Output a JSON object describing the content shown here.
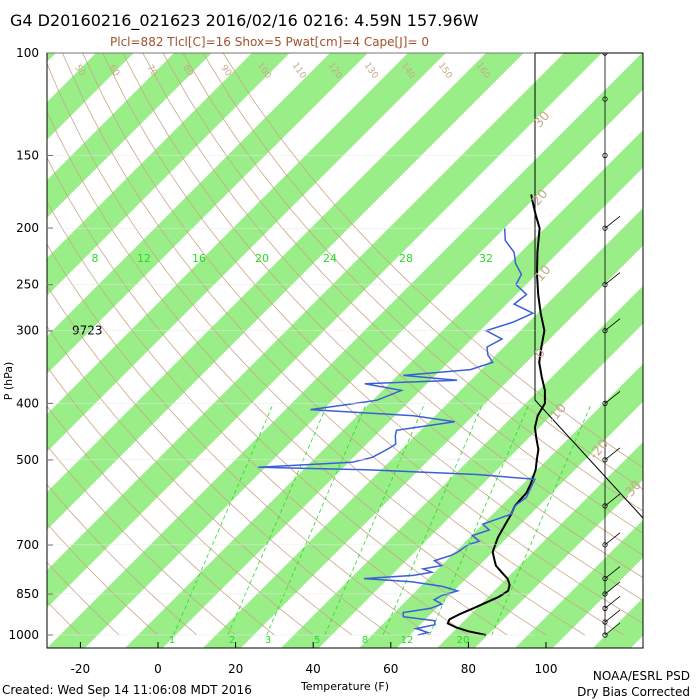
{
  "header": {
    "title": "G4 D20160216_021623 2016/02/16 0216:  4.59N 157.96W",
    "subtitle": "Plcl=882 Tlcl[C]=16 Shox=5 Pwat[cm]=4 Cape[J]= 0"
  },
  "footer": {
    "created": "Created: Wed Sep 14 11:06:08 MDT 2016",
    "credit_line1": "NOAA/ESRL PSD",
    "credit_line2": "Dry Bias Corrected"
  },
  "chart_data": {
    "type": "line",
    "title": "G4 D20160216_021623 2016/02/16 0216:  4.59N 157.96W",
    "xlabel": "Temperature (F)",
    "ylabel": "P (hPa)",
    "x_scale": "linear, skewed",
    "y_scale": "log",
    "xlim": [
      -29,
      105
    ],
    "ylim": [
      1000,
      100
    ],
    "x_ticks": [
      -20,
      0,
      20,
      40,
      60,
      80,
      100
    ],
    "y_ticks": [
      100,
      150,
      200,
      250,
      300,
      400,
      500,
      700,
      850,
      1000
    ],
    "height_annotation": {
      "pressure": 300,
      "text": "9723"
    },
    "mixing_ratio_labels_upper": [
      "8",
      "12",
      "16",
      "20",
      "24",
      "28",
      "32"
    ],
    "mixing_ratio_labels_lower": [
      "1",
      "2",
      "3",
      "5",
      "8",
      "12",
      "20"
    ],
    "theta_labels": [
      "50",
      "60",
      "70",
      "80",
      "90",
      "100",
      "110",
      "120",
      "130",
      "140",
      "150",
      "160"
    ],
    "dry_adiabat_labels": [
      "30",
      "20",
      "10",
      "0",
      "-10",
      "-20",
      "-30"
    ],
    "colors": {
      "temperature": "#000000",
      "dewpoint": "#3a5fd8",
      "band": "#99ee88",
      "mixing_ratio": "#22dd22",
      "adiabat": "#c8a888"
    },
    "series": [
      {
        "name": "Temperature",
        "points": [
          [
            1000,
            84.5
          ],
          [
            985,
            79
          ],
          [
            970,
            75
          ],
          [
            955,
            72
          ],
          [
            940,
            71.5
          ],
          [
            920,
            73
          ],
          [
            900,
            75
          ],
          [
            880,
            77
          ],
          [
            860,
            79
          ],
          [
            840,
            80
          ],
          [
            820,
            79
          ],
          [
            800,
            77
          ],
          [
            780,
            74
          ],
          [
            760,
            71
          ],
          [
            740,
            69
          ],
          [
            720,
            67
          ],
          [
            700,
            66
          ],
          [
            680,
            65
          ],
          [
            650,
            64
          ],
          [
            620,
            63
          ],
          [
            600,
            62
          ],
          [
            570,
            62
          ],
          [
            550,
            61
          ],
          [
            520,
            59
          ],
          [
            500,
            57
          ],
          [
            480,
            55
          ],
          [
            460,
            52
          ],
          [
            440,
            49
          ],
          [
            420,
            47
          ],
          [
            400,
            46
          ],
          [
            380,
            43
          ],
          [
            360,
            39
          ],
          [
            340,
            35
          ],
          [
            320,
            32
          ],
          [
            300,
            29
          ],
          [
            280,
            24
          ],
          [
            260,
            19
          ],
          [
            240,
            14
          ],
          [
            220,
            9
          ],
          [
            200,
            4
          ],
          [
            190,
            0
          ],
          [
            180,
            -4
          ],
          [
            175,
            -6
          ]
        ]
      },
      {
        "name": "Dewpoint",
        "points": [
          [
            1000,
            67
          ],
          [
            990,
            69
          ],
          [
            975,
            65
          ],
          [
            960,
            69
          ],
          [
            945,
            68
          ],
          [
            930,
            59
          ],
          [
            915,
            58
          ],
          [
            900,
            64
          ],
          [
            885,
            66
          ],
          [
            870,
            63
          ],
          [
            855,
            64
          ],
          [
            840,
            67
          ],
          [
            825,
            62
          ],
          [
            810,
            53
          ],
          [
            800,
            40
          ],
          [
            790,
            52
          ],
          [
            780,
            56
          ],
          [
            770,
            53
          ],
          [
            760,
            57
          ],
          [
            745,
            54
          ],
          [
            730,
            57
          ],
          [
            720,
            58
          ],
          [
            700,
            59
          ],
          [
            690,
            61
          ],
          [
            675,
            58
          ],
          [
            660,
            61
          ],
          [
            645,
            58
          ],
          [
            630,
            61
          ],
          [
            620,
            63
          ],
          [
            600,
            62
          ],
          [
            580,
            63
          ],
          [
            560,
            62
          ],
          [
            540,
            61
          ],
          [
            530,
            45
          ],
          [
            520,
            15
          ],
          [
            515,
            -13
          ],
          [
            505,
            10
          ],
          [
            495,
            14
          ],
          [
            480,
            16
          ],
          [
            470,
            17
          ],
          [
            455,
            15
          ],
          [
            445,
            14
          ],
          [
            430,
            27
          ],
          [
            420,
            15
          ],
          [
            410,
            -13
          ],
          [
            402,
            -5
          ],
          [
            395,
            2
          ],
          [
            380,
            6
          ],
          [
            370,
            -5
          ],
          [
            365,
            18
          ],
          [
            358,
            3
          ],
          [
            350,
            19
          ],
          [
            340,
            23
          ],
          [
            330,
            20
          ],
          [
            320,
            18
          ],
          [
            310,
            20
          ],
          [
            300,
            14
          ],
          [
            290,
            19
          ],
          [
            280,
            22
          ],
          [
            270,
            15
          ],
          [
            260,
            16
          ],
          [
            250,
            11
          ],
          [
            240,
            10
          ],
          [
            230,
            6
          ],
          [
            220,
            3
          ],
          [
            210,
            -2
          ],
          [
            200,
            -5
          ]
        ]
      }
    ]
  }
}
